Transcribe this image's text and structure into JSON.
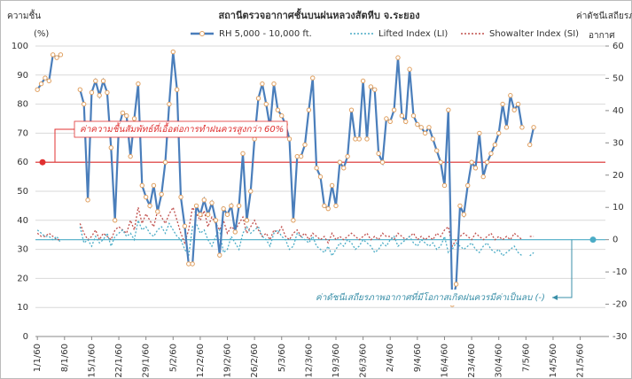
{
  "chart_data": {
    "type": "line",
    "title": "สถานีตรวจอากาศชั้นบนฝนหลวงสัตหีบ จ.ระยอง",
    "y_label": [
      "ความชื้น",
      "(%)"
    ],
    "y2_label": [
      "ค่าดัชนีเสถียรภาพ",
      "อากาศ"
    ],
    "categories": [
      "1/1/60",
      null,
      null,
      null,
      null,
      null,
      null,
      "8/1/60",
      null,
      null,
      null,
      null,
      null,
      null,
      "15/1/60",
      null,
      null,
      null,
      null,
      null,
      null,
      "22/1/60",
      null,
      null,
      null,
      null,
      null,
      null,
      "29/1/60",
      null,
      null,
      null,
      null,
      null,
      null,
      "5/2/60",
      null,
      null,
      null,
      null,
      null,
      null,
      "12/2/60",
      null,
      null,
      null,
      null,
      null,
      null,
      "19/2/60",
      null,
      null,
      null,
      null,
      null,
      null,
      "26/2/60",
      null,
      null,
      null,
      null,
      null,
      null,
      "5/3/60",
      null,
      null,
      null,
      null,
      null,
      null,
      "12/3/60",
      null,
      null,
      null,
      null,
      null,
      null,
      "19/3/60",
      null,
      null,
      null,
      null,
      null,
      null,
      "26/3/60",
      null,
      null,
      null,
      null,
      null,
      null,
      "2/4/60",
      null,
      null,
      null,
      null,
      null,
      null,
      "9/4/60",
      null,
      null,
      null,
      null,
      null,
      null,
      "16/4/60",
      null,
      null,
      null,
      null,
      null,
      null,
      "23/4/60",
      null,
      null,
      null,
      null,
      null,
      null,
      "30/4/60",
      null,
      null,
      null,
      null,
      null,
      null,
      "7/5/60",
      null,
      null,
      null,
      null,
      null,
      null,
      "14/5/60",
      null,
      null,
      null,
      null,
      null,
      null,
      "21/5/60",
      null,
      null,
      null,
      null,
      null,
      null
    ],
    "series": [
      {
        "name": "RH 5,000 - 10,000 ft.",
        "color": "#4a7ebb",
        "marker_color": "#e0a060",
        "style": "solid",
        "axis": "y",
        "values": [
          85,
          87,
          89,
          88,
          97,
          96,
          97,
          null,
          null,
          null,
          null,
          85,
          80,
          47,
          84,
          88,
          83,
          88,
          84,
          65,
          40,
          72,
          77,
          76,
          62,
          75,
          87,
          52,
          48,
          45,
          52,
          43,
          49,
          60,
          80,
          98,
          85,
          48,
          38,
          25,
          25,
          45,
          42,
          47,
          42,
          46,
          40,
          28,
          44,
          42,
          45,
          36,
          45,
          63,
          40,
          50,
          68,
          82,
          87,
          80,
          72,
          87,
          78,
          76,
          73,
          68,
          40,
          62,
          62,
          66,
          78,
          89,
          58,
          55,
          45,
          44,
          52,
          45,
          60,
          58,
          62,
          78,
          68,
          68,
          88,
          68,
          86,
          85,
          63,
          60,
          75,
          74,
          78,
          96,
          76,
          74,
          92,
          76,
          73,
          72,
          70,
          72,
          68,
          64,
          60,
          52,
          78,
          11,
          18,
          45,
          42,
          52,
          60,
          58,
          70,
          55,
          60,
          63,
          66,
          70,
          80,
          72,
          83,
          78,
          80,
          72,
          null,
          66,
          72,
          null,
          null,
          null,
          null,
          null,
          null,
          null,
          null,
          null,
          null,
          null,
          null,
          null,
          null,
          null,
          null,
          null,
          null
        ]
      },
      {
        "name": "Lifted Index (LI)",
        "color": "#4bacc6",
        "style": "dotted",
        "axis": "y2",
        "values": [
          3,
          2,
          1,
          1,
          0,
          1,
          -1,
          null,
          null,
          null,
          null,
          4,
          -1,
          0,
          -2,
          1,
          -1,
          0,
          2,
          -2,
          1,
          2,
          3,
          1,
          2,
          0,
          6,
          3,
          4,
          2,
          1,
          3,
          4,
          2,
          5,
          3,
          1,
          0,
          -3,
          -5,
          4,
          5,
          2,
          3,
          0,
          -2,
          1,
          3,
          -4,
          -3,
          1,
          -1,
          -3,
          2,
          4,
          2,
          3,
          4,
          1,
          0,
          -2,
          2,
          3,
          1,
          0,
          -3,
          -2,
          2,
          1,
          0,
          -1,
          1,
          -2,
          -3,
          -4,
          -2,
          -5,
          -3,
          -1,
          -2,
          0,
          -1,
          -3,
          -2,
          0,
          -1,
          -2,
          -4,
          -3,
          -1,
          -2,
          0,
          1,
          -2,
          -1,
          0,
          1,
          -1,
          -2,
          0,
          -1,
          -2,
          -1,
          -3,
          -2,
          1,
          -4,
          -3,
          -1,
          -2,
          -3,
          -2,
          -1,
          -3,
          -4,
          -2,
          -1,
          -3,
          -4,
          -3,
          -5,
          -4,
          -3,
          -2,
          -4,
          -5,
          null,
          -5,
          -4,
          null,
          null,
          null,
          null,
          null,
          null,
          null,
          null,
          null,
          null,
          null,
          null,
          null,
          null,
          null,
          null,
          null,
          null
        ]
      },
      {
        "name": "Showalter Index (SI)",
        "color": "#c0504d",
        "style": "dotted",
        "axis": "y2",
        "values": [
          2,
          1,
          1,
          2,
          1,
          0,
          0,
          null,
          null,
          null,
          null,
          5,
          2,
          0,
          1,
          3,
          0,
          2,
          1,
          0,
          3,
          4,
          3,
          2,
          6,
          3,
          10,
          5,
          8,
          6,
          4,
          9,
          7,
          5,
          8,
          10,
          6,
          2,
          -1,
          3,
          10,
          8,
          6,
          9,
          4,
          7,
          5,
          3,
          6,
          2,
          4,
          3,
          5,
          7,
          2,
          4,
          6,
          3,
          1,
          2,
          0,
          3,
          2,
          4,
          1,
          0,
          2,
          3,
          1,
          2,
          0,
          2,
          1,
          0,
          1,
          -1,
          2,
          0,
          1,
          0,
          1,
          2,
          1,
          0,
          1,
          2,
          0,
          1,
          0,
          2,
          1,
          1,
          0,
          2,
          1,
          0,
          1,
          2,
          0,
          1,
          0,
          1,
          0,
          2,
          1,
          3,
          4,
          -2,
          0,
          1,
          2,
          1,
          0,
          2,
          1,
          0,
          1,
          2,
          0,
          1,
          0,
          1,
          0,
          2,
          1,
          0,
          null,
          1,
          1,
          null,
          null,
          null,
          null,
          null,
          null,
          null,
          null,
          null,
          null,
          null,
          null,
          null,
          null,
          null,
          null,
          null,
          null
        ]
      }
    ],
    "ylim": [
      0,
      100
    ],
    "yticks": [
      0,
      10,
      20,
      30,
      40,
      50,
      60,
      70,
      80,
      90,
      100
    ],
    "y2lim": [
      -30,
      60
    ],
    "y2ticks": [
      -30,
      -20,
      -10,
      0,
      10,
      20,
      30,
      40,
      50,
      60
    ],
    "grid": true,
    "reference_lines": [
      {
        "axis": "y",
        "value": 60,
        "color": "#e03030"
      },
      {
        "axis": "y2",
        "value": 0,
        "color": "#4bacc6"
      }
    ],
    "annotations": [
      {
        "text": "ค่าความชื้นสัมพัทธ์ที่เอื้อต่อการทำฝนควรสูงกว่า 60%",
        "color": "#e03030"
      },
      {
        "text": "ค่าดัชนีเสถียรภาพอากาศที่มีโอกาสเกิดฝนควรมีค่าเป็นลบ (-)",
        "color": "#3a8fa8"
      }
    ]
  }
}
